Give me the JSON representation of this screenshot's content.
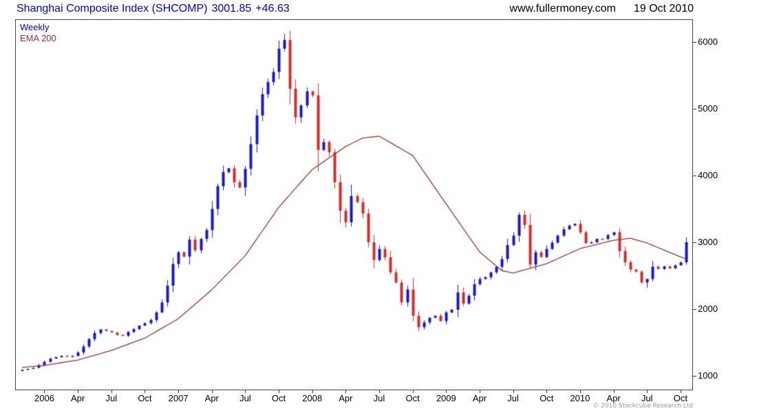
{
  "header": {
    "instrument": "Shanghai Composite Index (SHCOMP)",
    "last_price": "3001.85",
    "change": "+46.63",
    "website": "www.fullermoney.com",
    "date": "19 Oct 2010"
  },
  "legend": {
    "series1": "Weekly",
    "series2": "EMA 200"
  },
  "footer": {
    "copyright": "© 2010 Stockcube Research Ltd"
  },
  "chart_data": {
    "type": "candlestick",
    "title": "Shanghai Composite Index (SHCOMP)",
    "interval": "Weekly",
    "overlay": "EMA 200",
    "period_start": "Nov 2005",
    "period_end": "19 Oct 2010",
    "last_close": 3001.85,
    "change": 46.63,
    "all_time_high": 6124,
    "bear_low": 1664,
    "y_ticks": [
      1000,
      2000,
      3000,
      4000,
      5000,
      6000
    ],
    "y_min": 794,
    "y_max": 6330,
    "grid": false,
    "legend_position": "top-left",
    "x_labels": [
      {
        "label": "2006",
        "month": 2
      },
      {
        "label": "Apr",
        "month": 5
      },
      {
        "label": "Jul",
        "month": 8
      },
      {
        "label": "Oct",
        "month": 11
      },
      {
        "label": "2007",
        "month": 14
      },
      {
        "label": "Apr",
        "month": 17
      },
      {
        "label": "Jul",
        "month": 20
      },
      {
        "label": "Oct",
        "month": 23
      },
      {
        "label": "2008",
        "month": 26
      },
      {
        "label": "Apr",
        "month": 29
      },
      {
        "label": "Jul",
        "month": 32
      },
      {
        "label": "Oct",
        "month": 35
      },
      {
        "label": "2009",
        "month": 38
      },
      {
        "label": "Apr",
        "month": 41
      },
      {
        "label": "Jul",
        "month": 44
      },
      {
        "label": "Oct",
        "month": 47
      },
      {
        "label": "2010",
        "month": 50
      },
      {
        "label": "Apr",
        "month": 53
      },
      {
        "label": "Jul",
        "month": 56
      },
      {
        "label": "Oct",
        "month": 59
      }
    ],
    "first_open": 1072,
    "closes": [
      1090,
      1105,
      1120,
      1161,
      1210,
      1258,
      1280,
      1299,
      1290,
      1298,
      1350,
      1440,
      1550,
      1641,
      1695,
      1672,
      1650,
      1612,
      1601,
      1658,
      1700,
      1752,
      1790,
      1837,
      1950,
      2099,
      2350,
      2675,
      2850,
      2786,
      3040,
      2881,
      3050,
      3183,
      3500,
      3841,
      4050,
      4109,
      3900,
      3820,
      4100,
      4471,
      4900,
      5218,
      5400,
      5552,
      5900,
      6030,
      5300,
      4871,
      5050,
      5261,
      5200,
      4383,
      4500,
      4348,
      3900,
      3472,
      3300,
      3693,
      3600,
      3433,
      3000,
      2736,
      2900,
      2775,
      2550,
      2397,
      2100,
      2293,
      1900,
      1728,
      1800,
      1871,
      1900,
      1820,
      1950,
      1990,
      2250,
      2082,
      2200,
      2373,
      2450,
      2477,
      2550,
      2632,
      2750,
      2959,
      3100,
      3412,
      3260,
      2667,
      2850,
      2779,
      2900,
      2995,
      3100,
      3195,
      3250,
      3277,
      3150,
      2989,
      3000,
      3051,
      3050,
      3109,
      3150,
      2870,
      2700,
      2592,
      2560,
      2398,
      2450,
      2637,
      2600,
      2638,
      2610,
      2655,
      2700,
      3001.85
    ],
    "special_highs": {
      "47": 6124,
      "90": 3478
    },
    "special_lows": {
      "71": 1664,
      "112": 2319
    },
    "ema_anchors": [
      [
        0,
        1125
      ],
      [
        4,
        1155
      ],
      [
        10,
        1237
      ],
      [
        16,
        1380
      ],
      [
        22,
        1565
      ],
      [
        28,
        1855
      ],
      [
        34,
        2290
      ],
      [
        40,
        2800
      ],
      [
        46,
        3525
      ],
      [
        52,
        4090
      ],
      [
        58,
        4435
      ],
      [
        61,
        4560
      ],
      [
        64,
        4590
      ],
      [
        70,
        4300
      ],
      [
        76,
        3575
      ],
      [
        82,
        2855
      ],
      [
        86,
        2575
      ],
      [
        88,
        2540
      ],
      [
        94,
        2680
      ],
      [
        100,
        2905
      ],
      [
        106,
        3030
      ],
      [
        109,
        3060
      ],
      [
        112,
        2990
      ],
      [
        116,
        2850
      ],
      [
        119,
        2750
      ]
    ],
    "colors": {
      "up": "#1818cc",
      "down": "#d62c2c",
      "ema": "#8e3434",
      "title": "#0000cc"
    }
  }
}
